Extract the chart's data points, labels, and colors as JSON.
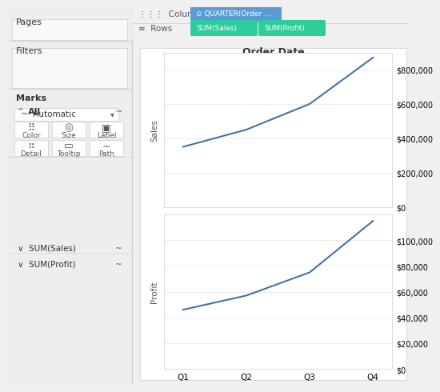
{
  "quarters": [
    "Q1",
    "Q2",
    "Q3",
    "Q4"
  ],
  "sales": [
    350000,
    450000,
    600000,
    870000
  ],
  "profit": [
    46000,
    57000,
    75000,
    115000
  ],
  "sales_yticks": [
    0,
    200000,
    400000,
    600000,
    800000
  ],
  "profit_yticks": [
    0,
    20000,
    40000,
    60000,
    80000,
    100000
  ],
  "line_color": "#4472a8",
  "bg_color": "#f0f0f0",
  "panel_color": "#ffffff",
  "sidebar_color": "#f5f5f5",
  "header_bg": "#e8e8e8",
  "columns_pill_color": "#5b9bd5",
  "rows_pill_color": "#2ecc9a",
  "title": "Order Date",
  "columns_label": "Columns",
  "rows_label": "Rows",
  "columns_pill_text": "⊙ QUARTER(Order ...",
  "rows_pill1_text": "SUM(Sales)",
  "rows_pill2_text": "SUM(Profit)",
  "pages_label": "Pages",
  "filters_label": "Filters",
  "marks_label": "Marks",
  "all_label": "All",
  "automatic_label": "Automatic",
  "color_label": "Color",
  "size_label": "Size",
  "label_label": "Label",
  "detail_label": "Detail",
  "tooltip_label": "Tooltip",
  "path_label": "Path",
  "sum_sales_label": "SUM(Sales)",
  "sum_profit_label": "SUM(Profit)"
}
